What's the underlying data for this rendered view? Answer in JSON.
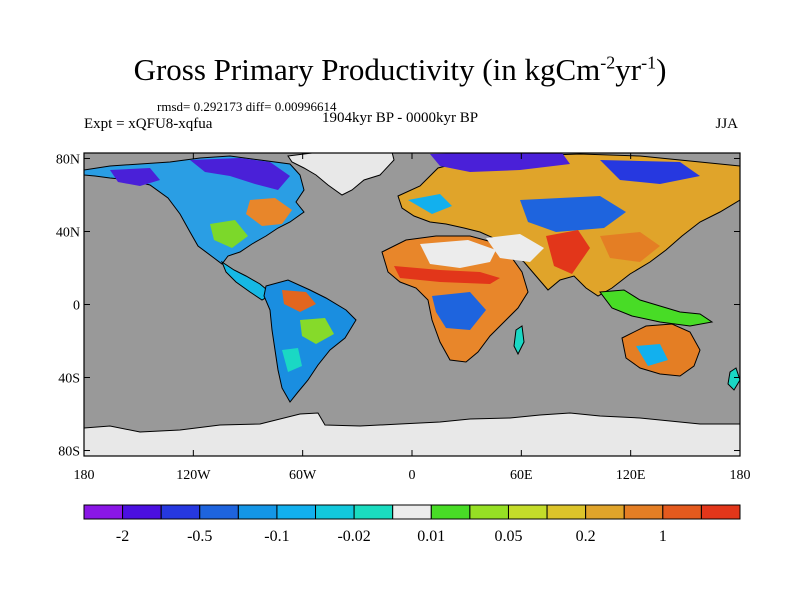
{
  "title": {
    "main": "Gross Primary Productivity (in kgCm",
    "sup1": "-2",
    "mid": "yr",
    "sup2": "-1",
    "close": ")"
  },
  "stats": "rmsd= 0.292173 diff= 0.00996614",
  "experiment": "Expt = xQFU8-xqfua",
  "period": "1904kyr BP - 0000kyr BP",
  "season": "JJA",
  "colors": {
    "ocean": "#999999",
    "ice": "#e8e8e8"
  },
  "axes": {
    "lat_ticks": [
      {
        "value": 80,
        "label": "80N"
      },
      {
        "value": 40,
        "label": "40N"
      },
      {
        "value": 0,
        "label": "0"
      },
      {
        "value": -40,
        "label": "40S"
      },
      {
        "value": -80,
        "label": "80S"
      }
    ],
    "lon_ticks": [
      {
        "value": -180,
        "label": "180"
      },
      {
        "value": -120,
        "label": "120W"
      },
      {
        "value": -60,
        "label": "60W"
      },
      {
        "value": 0,
        "label": "0"
      },
      {
        "value": 60,
        "label": "60E"
      },
      {
        "value": 120,
        "label": "120E"
      },
      {
        "value": 180,
        "label": "180"
      }
    ]
  },
  "colorbar": {
    "colors": [
      "#8a16e6",
      "#4b10e0",
      "#2638e0",
      "#1e64de",
      "#1496e6",
      "#12b0ee",
      "#12c8dc",
      "#1adcc0",
      "#ececec",
      "#48dc26",
      "#96e024",
      "#c4dc2a",
      "#dcc42a",
      "#e0a42a",
      "#e47e24",
      "#e45a1e",
      "#e2361a"
    ],
    "labels": [
      {
        "after_box": 1,
        "text": "-2"
      },
      {
        "after_box": 3,
        "text": "-0.5"
      },
      {
        "after_box": 5,
        "text": "-0.1"
      },
      {
        "after_box": 7,
        "text": "-0.02"
      },
      {
        "after_box": 9,
        "text": "0.01"
      },
      {
        "after_box": 11,
        "text": "0.05"
      },
      {
        "after_box": 13,
        "text": "0.2"
      },
      {
        "after_box": 15,
        "text": "1"
      }
    ]
  }
}
